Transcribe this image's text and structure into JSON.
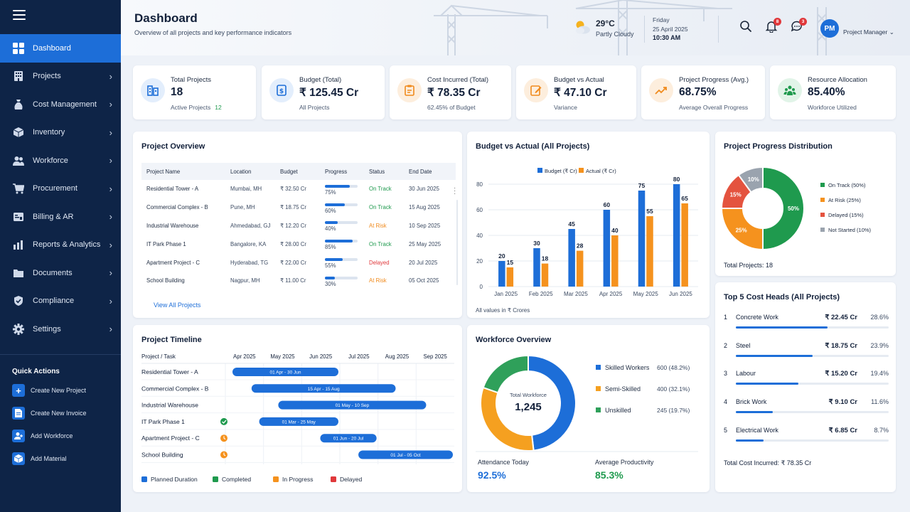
{
  "sidebar": {
    "items": [
      {
        "label": "Dashboard",
        "icon": "grid-icon"
      },
      {
        "label": "Projects",
        "icon": "building-icon"
      },
      {
        "label": "Cost Management",
        "icon": "money-bag-icon"
      },
      {
        "label": "Inventory",
        "icon": "box-icon"
      },
      {
        "label": "Workforce",
        "icon": "people-icon"
      },
      {
        "label": "Procurement",
        "icon": "cart-icon"
      },
      {
        "label": "Billing & AR",
        "icon": "invoice-icon"
      },
      {
        "label": "Reports & Analytics",
        "icon": "bar-chart-icon"
      },
      {
        "label": "Documents",
        "icon": "folder-icon"
      },
      {
        "label": "Compliance",
        "icon": "shield-icon"
      },
      {
        "label": "Settings",
        "icon": "gear-icon"
      }
    ],
    "quick_actions_title": "Quick Actions",
    "quick_actions": [
      {
        "label": "Create New Project",
        "icon": "plus-icon"
      },
      {
        "label": "Create New Invoice",
        "icon": "document-icon"
      },
      {
        "label": "Add Workforce",
        "icon": "add-user-icon"
      },
      {
        "label": "Add Material",
        "icon": "cube-icon"
      }
    ]
  },
  "header": {
    "title": "Dashboard",
    "subtitle": "Overview of all projects and key performance indicators",
    "weather": {
      "temp": "29°C",
      "condition": "Partly Cloudy"
    },
    "date": {
      "day": "Friday",
      "date": "25 April 2025",
      "time": "10:30 AM"
    },
    "notifications_count": "8",
    "messages_count": "3",
    "user_initials": "PM",
    "user_role": "Project Manager"
  },
  "kpis": [
    {
      "label": "Total Projects",
      "value": "18",
      "sub": "Active Projects",
      "sub_value": "12",
      "color": "#1d6ed8",
      "bg": "#e3eefc",
      "icon": "buildings-icon"
    },
    {
      "label": "Budget (Total)",
      "value": "₹ 125.45 Cr",
      "sub": "All Projects",
      "sub_value": "",
      "color": "#1d6ed8",
      "bg": "#e3eefc",
      "icon": "budget-icon"
    },
    {
      "label": "Cost Incurred (Total)",
      "value": "₹ 78.35 Cr",
      "sub": "62.45% of Budget",
      "sub_value": "",
      "color": "#f08a1c",
      "bg": "#fdeedd",
      "icon": "clipboard-icon"
    },
    {
      "label": "Budget vs Actual",
      "value": "₹ 47.10 Cr",
      "sub": "Variance",
      "sub_value": "",
      "color": "#f08a1c",
      "bg": "#fdeedd",
      "icon": "edit-icon"
    },
    {
      "label": "Project Progress (Avg.)",
      "value": "68.75%",
      "sub": "Average Overall Progress",
      "sub_value": "",
      "color": "#f08a1c",
      "bg": "#fdeedd",
      "icon": "trend-up-icon"
    },
    {
      "label": "Resource Allocation",
      "value": "85.40%",
      "sub": "Workforce Utilized",
      "sub_value": "",
      "color": "#1f9a4e",
      "bg": "#e1f4e8",
      "icon": "team-icon"
    }
  ],
  "project_overview": {
    "title": "Project Overview",
    "columns": [
      "Project Name",
      "Location",
      "Budget",
      "Progress",
      "Status",
      "End Date"
    ],
    "rows": [
      {
        "name": "Residential Tower - A",
        "location": "Mumbai, MH",
        "budget": "₹ 32.50 Cr",
        "progress": 75,
        "progress_label": "75%",
        "status": "On Track",
        "end": "30 Jun 2025"
      },
      {
        "name": "Commercial Complex - B",
        "location": "Pune, MH",
        "budget": "₹ 18.75 Cr",
        "progress": 60,
        "progress_label": "60%",
        "status": "On Track",
        "end": "15 Aug 2025"
      },
      {
        "name": "Industrial Warehouse",
        "location": "Ahmedabad, GJ",
        "budget": "₹ 12.20 Cr",
        "progress": 40,
        "progress_label": "40%",
        "status": "At Risk",
        "end": "10 Sep 2025"
      },
      {
        "name": "IT Park Phase 1",
        "location": "Bangalore, KA",
        "budget": "₹ 28.00 Cr",
        "progress": 85,
        "progress_label": "85%",
        "status": "On Track",
        "end": "25 May 2025"
      },
      {
        "name": "Apartment Project - C",
        "location": "Hyderabad, TG",
        "budget": "₹ 22.00 Cr",
        "progress": 55,
        "progress_label": "55%",
        "status": "Delayed",
        "end": "20 Jul 2025"
      },
      {
        "name": "School Building",
        "location": "Nagpur, MH",
        "budget": "₹ 11.00 Cr",
        "progress": 30,
        "progress_label": "30%",
        "status": "At Risk",
        "end": "05 Oct 2025"
      }
    ],
    "status_colors": {
      "On Track": "#1f9a4e",
      "At Risk": "#f08a1c",
      "Delayed": "#e0383b"
    },
    "link": "View All Projects"
  },
  "chart_data": [
    {
      "type": "bar",
      "title": "Budget vs Actual (All Projects)",
      "categories": [
        "Jan 2025",
        "Feb 2025",
        "Mar 2025",
        "Apr 2025",
        "May 2025",
        "Jun 2025"
      ],
      "series": [
        {
          "name": "Budget (₹ Cr)",
          "values": [
            20,
            30,
            45,
            60,
            75,
            80
          ],
          "color": "#1d6ed8"
        },
        {
          "name": "Actual (₹ Cr)",
          "values": [
            15,
            18,
            28,
            40,
            55,
            65
          ],
          "color": "#f5921e"
        }
      ],
      "yticks": [
        "0",
        "20",
        "40",
        "60",
        "80"
      ],
      "ylim": [
        0,
        80
      ],
      "note": "All values in ₹ Crores",
      "legend": "top"
    },
    {
      "type": "pie",
      "title": "Project Progress Distribution",
      "labels": [
        "On Track",
        "At Risk",
        "Delayed",
        "Not Started"
      ],
      "values": [
        50,
        25,
        15,
        10
      ],
      "slice_labels": [
        "50%",
        "25%",
        "15%",
        "10%"
      ],
      "legend_labels": [
        "On Track (50%)",
        "At Risk (25%)",
        "Delayed (15%)",
        "Not Started (10%)"
      ],
      "colors": [
        "#1f9a4e",
        "#f5921e",
        "#e4533f",
        "#9aa3ae"
      ],
      "footer_label": "Total Projects:",
      "footer_value": "18"
    },
    {
      "type": "pie",
      "title": "Workforce Overview",
      "labels": [
        "Skilled Workers",
        "Semi-Skilled",
        "Unskilled"
      ],
      "values": [
        600,
        400,
        245
      ],
      "value_labels": [
        "600 (48.2%)",
        "400 (32.1%)",
        "245 (19.7%)"
      ],
      "colors": [
        "#1d6ed8",
        "#f5a020",
        "#2fa05a"
      ],
      "center_label": "Total Workforce",
      "center_value": "1,245"
    }
  ],
  "workforce_stats": [
    {
      "label": "Attendance Today",
      "value": "92.5%",
      "color": "#1d6ed8"
    },
    {
      "label": "Average Productivity",
      "value": "85.3%",
      "color": "#1f9a4e"
    }
  ],
  "timeline": {
    "title": "Project Timeline",
    "header": "Project / Task",
    "months": [
      "Apr 2025",
      "May 2025",
      "Jun 2025",
      "Jul 2025",
      "Aug 2025",
      "Sep 2025"
    ],
    "tasks": [
      {
        "name": "Residential Tower - A",
        "bar": "01 Apr - 30 Jun",
        "start": 0,
        "end": 3,
        "marker": ""
      },
      {
        "name": "Commercial Complex - B",
        "bar": "15 Apr - 15 Aug",
        "start": 0.5,
        "end": 4.5,
        "marker": ""
      },
      {
        "name": "Industrial Warehouse",
        "bar": "01 May - 10 Sep",
        "start": 1.2,
        "end": 5.3,
        "marker": ""
      },
      {
        "name": "IT Park Phase 1",
        "bar": "01 Mar - 25 May",
        "start": 0.7,
        "end": 3,
        "marker": "completed"
      },
      {
        "name": "Apartment Project - C",
        "bar": "01 Jun - 20 Jul",
        "start": 2.3,
        "end": 4,
        "marker": "in-progress"
      },
      {
        "name": "School Building",
        "bar": "01 Jul - 05 Oct",
        "start": 3.3,
        "end": 6,
        "marker": "in-progress"
      }
    ],
    "legend": [
      {
        "label": "Planned Duration",
        "color": "#1d6ed8"
      },
      {
        "label": "Completed",
        "color": "#1f9a4e"
      },
      {
        "label": "In Progress",
        "color": "#f5921e"
      },
      {
        "label": "Delayed",
        "color": "#e0383b"
      }
    ]
  },
  "cost_heads": {
    "title": "Top 5 Cost Heads (All Projects)",
    "rows": [
      {
        "rank": "1",
        "name": "Concrete Work",
        "value": "₹ 22.45 Cr",
        "pct": "28.6%",
        "frac": 0.286
      },
      {
        "rank": "2",
        "name": "Steel",
        "value": "₹ 18.75 Cr",
        "pct": "23.9%",
        "frac": 0.239
      },
      {
        "rank": "3",
        "name": "Labour",
        "value": "₹ 15.20 Cr",
        "pct": "19.4%",
        "frac": 0.194
      },
      {
        "rank": "4",
        "name": "Brick Work",
        "value": "₹ 9.10 Cr",
        "pct": "11.6%",
        "frac": 0.116
      },
      {
        "rank": "5",
        "name": "Electrical Work",
        "value": "₹ 6.85 Cr",
        "pct": "8.7%",
        "frac": 0.087
      }
    ],
    "total_label": "Total Cost Incurred:",
    "total_value": "₹ 78.35 Cr"
  }
}
